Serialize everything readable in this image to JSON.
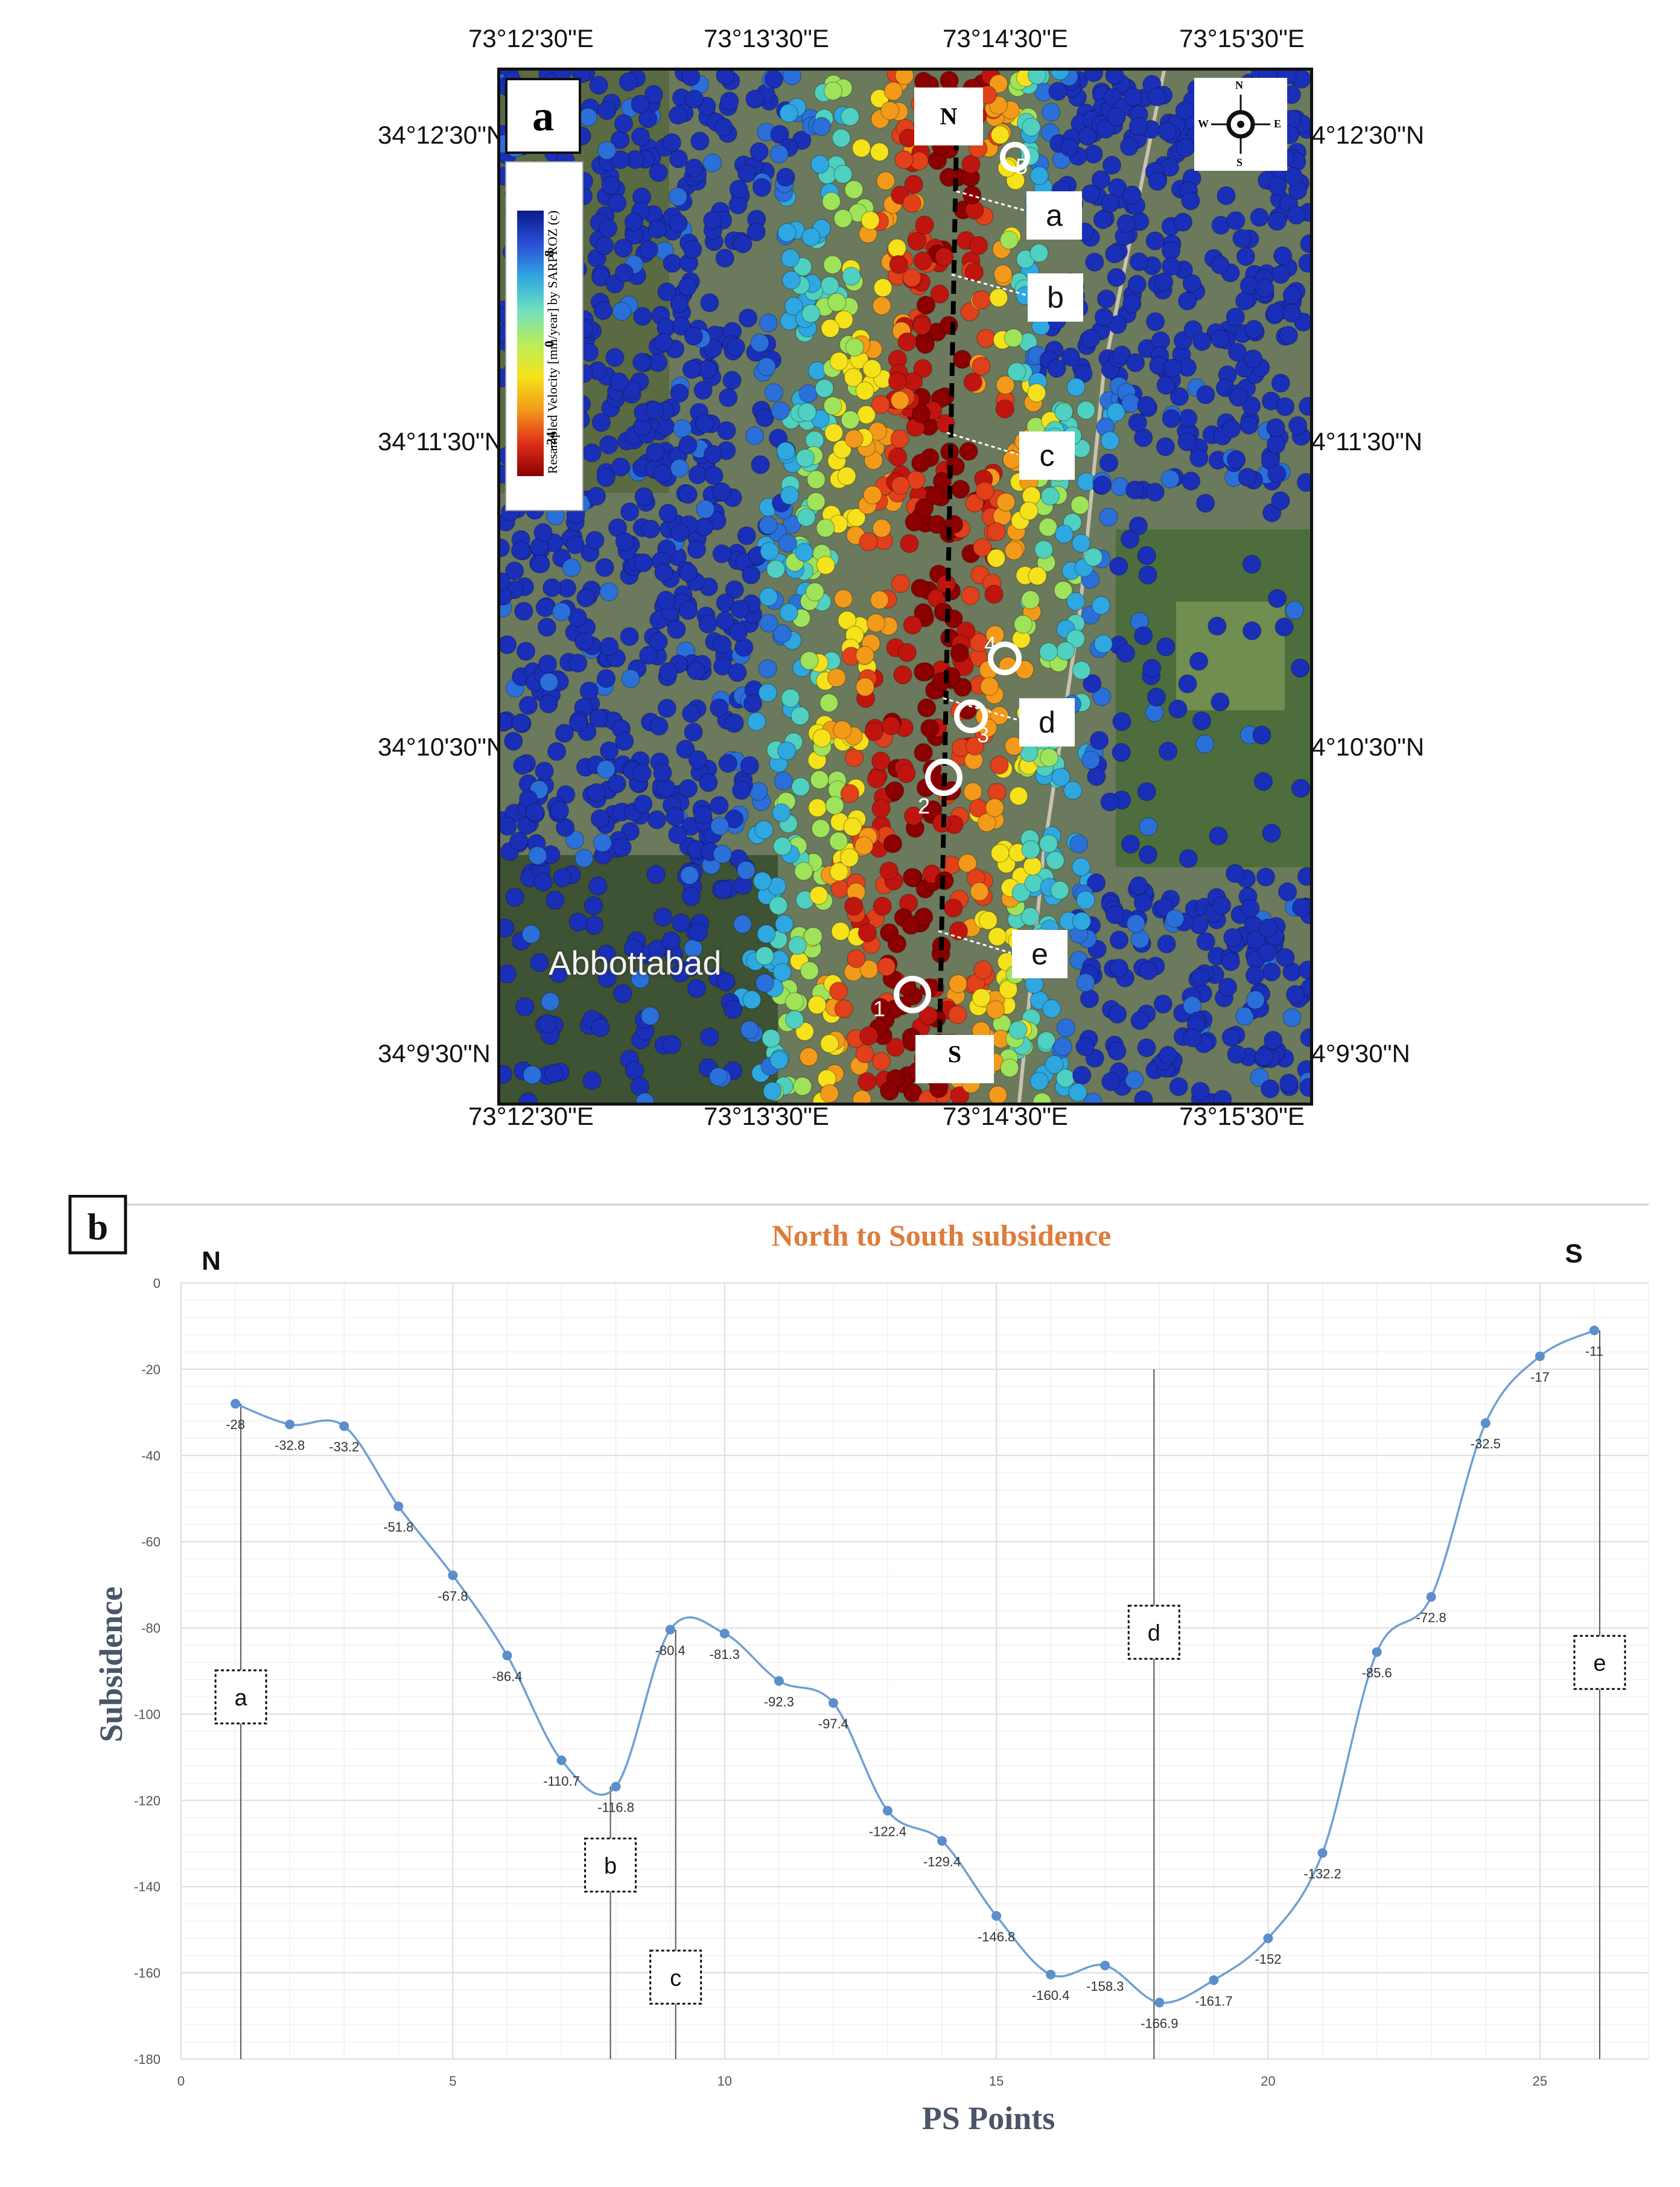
{
  "map_panel": {
    "panel_label": "a",
    "legend": {
      "title": "Resampled Velocity [mm/year] by SARPROZ (c)",
      "ticks": [
        "8",
        "0",
        "-24"
      ]
    },
    "top_lon_labels": [
      "73°12'30\"E",
      "73°13'30\"E",
      "73°14'30\"E",
      "73°15'30\"E"
    ],
    "bottom_lon_labels": [
      "73°12'30\"E",
      "73°13'30\"E",
      "73°14'30\"E",
      "73°15'30\"E"
    ],
    "left_lat_labels": [
      "34°12'30\"N",
      "34°11'30\"N",
      "34°10'30\"N",
      "34°9'30\"N"
    ],
    "right_lat_labels": [
      "34°12'30\"N",
      "34°11'30\"N",
      "34°10'30\"N",
      "34°9'30\"N"
    ],
    "profile_start": "N",
    "profile_end": "S",
    "callouts": [
      "a",
      "b",
      "c",
      "d",
      "e"
    ],
    "markers": [
      "5",
      "4",
      "3",
      "2",
      "1"
    ],
    "place_name": "Abbottabad",
    "compass": {
      "n": "N",
      "s": "S",
      "e": "E",
      "w": "W"
    },
    "colors": {
      "high": "#1a2fb8",
      "mid": "#f5e21a",
      "low": "#8b0000"
    }
  },
  "chart_data": {
    "type": "line",
    "panel_label": "b",
    "title": "North to South subsidence",
    "xlabel": "PS Points",
    "ylabel": "Subsidence",
    "xlim": [
      0,
      27
    ],
    "ylim": [
      -180,
      0
    ],
    "x_ticks": [
      0,
      5,
      10,
      15,
      20,
      25
    ],
    "y_ticks": [
      0,
      -20,
      -40,
      -60,
      -80,
      -100,
      -120,
      -140,
      -160,
      -180
    ],
    "x": [
      1,
      2,
      3,
      4,
      5,
      6,
      7,
      8,
      9,
      10,
      11,
      12,
      13,
      14,
      15,
      16,
      17,
      18,
      19,
      20,
      21,
      22,
      23,
      24,
      25,
      26
    ],
    "values": [
      -28,
      -32.8,
      -33.2,
      -51.8,
      -67.8,
      -86.4,
      -110.7,
      -116.8,
      -80.4,
      -81.3,
      -92.3,
      -97.4,
      -122.4,
      -129.4,
      -146.8,
      -160.4,
      -158.3,
      -166.9,
      -161.7,
      -152,
      -132.2,
      -85.6,
      -72.8,
      -32.5,
      -17,
      -11
    ],
    "data_labels": [
      "-28",
      "-32.8",
      "-33.2",
      "-51.8",
      "-67.8",
      "-86.4",
      "-110.7",
      "-116.8",
      "-80.4",
      "-81.3",
      "-92.3",
      "-97.4",
      "-122.4",
      "-129.4",
      "-146.8",
      "-160.4",
      "-158.3",
      "-166.9",
      "-161.7",
      "-152",
      "-132.2",
      "-85.6",
      "-72.8",
      "-32.5",
      "-17",
      "-11"
    ],
    "start_label": "N",
    "end_label": "S",
    "markers": [
      {
        "label": "a",
        "x": 1.1,
        "y_top": -28,
        "box_y": -96
      },
      {
        "label": "b",
        "x": 7.9,
        "y_top": -116.8,
        "box_y": -135
      },
      {
        "label": "c",
        "x": 9.1,
        "y_top": -80.4,
        "box_y": -161
      },
      {
        "label": "d",
        "x": 17.9,
        "y_top": -20,
        "box_y": -81
      },
      {
        "label": "e",
        "x": 26.1,
        "y_top": -11,
        "box_y": -88
      }
    ],
    "colors": {
      "line": "#6f9fd4",
      "point": "#5b8fcc",
      "title": "#e07b39",
      "axis_title": "#4a5568"
    }
  }
}
